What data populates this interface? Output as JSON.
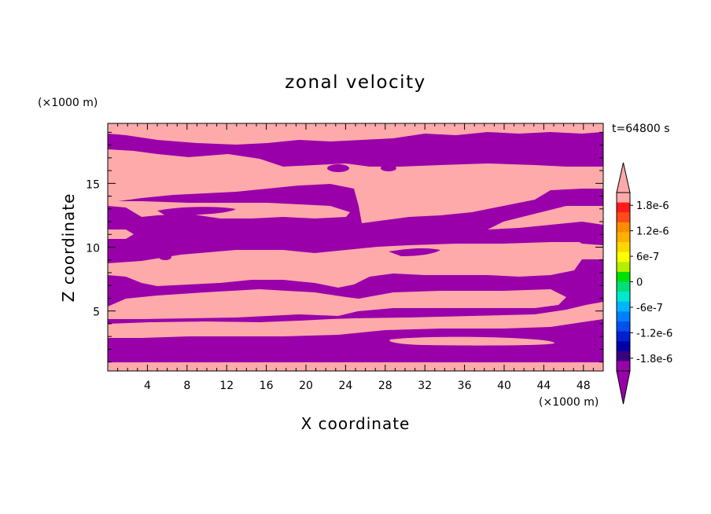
{
  "chart_data": {
    "type": "heatmap",
    "title": "zonal velocity",
    "xlabel": "X coordinate",
    "ylabel": "Z coordinate",
    "x_unit": "(×1000 m)",
    "y_unit": "(×1000 m)",
    "time_label": "t=64800 s",
    "xlim": [
      0,
      50
    ],
    "ylim": [
      0.3,
      19.7
    ],
    "x_ticks": [
      4,
      8,
      12,
      16,
      20,
      24,
      28,
      32,
      36,
      40,
      44,
      48
    ],
    "y_ticks": [
      5,
      10,
      15
    ],
    "grid": false,
    "colorbar": {
      "placement": "right",
      "tick_labels": [
        "1.8e-6",
        "1.2e-6",
        "6e-7",
        "0",
        "-6e-7",
        "-1.2e-6",
        "-1.8e-6"
      ],
      "tick_values": [
        1.8e-06,
        1.2e-06,
        6e-07,
        0,
        -6e-07,
        -1.2e-06,
        -1.8e-06
      ],
      "levels": [
        {
          "color": "#ffaaaa"
        },
        {
          "color": "#ff1a1a"
        },
        {
          "color": "#ff4a1a"
        },
        {
          "color": "#ff8c00"
        },
        {
          "color": "#ffb000"
        },
        {
          "color": "#ffd700"
        },
        {
          "color": "#ffff00"
        },
        {
          "color": "#b6f000"
        },
        {
          "color": "#00e000"
        },
        {
          "color": "#00e07a"
        },
        {
          "color": "#00e8d0"
        },
        {
          "color": "#00b4ff"
        },
        {
          "color": "#0080ff"
        },
        {
          "color": "#0050f0"
        },
        {
          "color": "#0020d0"
        },
        {
          "color": "#0000a8"
        },
        {
          "color": "#3b007f"
        },
        {
          "color": "#9900aa"
        }
      ]
    },
    "field_colors": {
      "positive": "#ffaaaa",
      "negative": "#9900aa"
    },
    "bands": [
      {
        "sign": "negative",
        "x": [
          0,
          50
        ],
        "z": [
          0.3,
          1.0
        ]
      },
      {
        "sign": "positive",
        "x": [
          0,
          50
        ],
        "z": [
          1.0,
          2.8
        ],
        "note": "pink layer near bottom"
      },
      {
        "sign": "negative",
        "x": [
          0,
          50
        ],
        "z": [
          2.8,
          4.0
        ]
      },
      {
        "sign": "positive",
        "x": [
          0,
          23
        ],
        "z": [
          4.0,
          5.5
        ]
      },
      {
        "sign": "negative",
        "x": [
          0,
          24
        ],
        "z": [
          5.5,
          7.0
        ]
      },
      {
        "sign": "positive",
        "x": [
          0,
          50
        ],
        "z": [
          7.0,
          10.0
        ]
      },
      {
        "sign": "negative",
        "x": [
          0,
          50
        ],
        "z": [
          10.0,
          13.5
        ]
      },
      {
        "sign": "positive",
        "x": [
          0,
          50
        ],
        "z": [
          13.5,
          17.0
        ]
      },
      {
        "sign": "negative",
        "x": [
          0,
          50
        ],
        "z": [
          17.0,
          19.7
        ]
      }
    ]
  }
}
